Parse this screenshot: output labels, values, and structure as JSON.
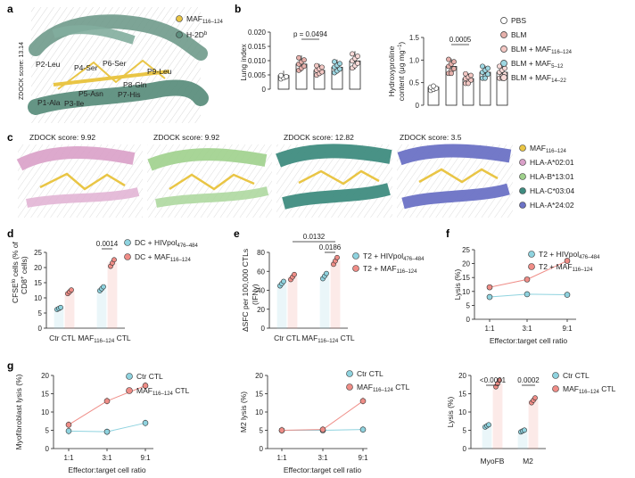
{
  "colors": {
    "maf": "#e9c545",
    "h2d": "#5d8f7e",
    "pbs": "#ffffff",
    "blm": "#e6b0ab",
    "maf116": "#f3c7c3",
    "maf5": "#9ed7e2",
    "maf14": "#f8dad8",
    "pink": "#d9a0c8",
    "green": "#9fd08c",
    "teal": "#3f8c80",
    "blue": "#6c72c5",
    "ctr": "#8fd3df",
    "mafred": "#ef8d87"
  },
  "panels": {
    "a": {
      "letter": "a",
      "zdock": "ZDOCK score: 13.14",
      "legend": [
        {
          "name": "MAF",
          "sub": "116–124"
        },
        {
          "name": "H-2D",
          "sup": "b"
        }
      ],
      "residues": [
        "P2-Leu",
        "P4-Ser",
        "P6-Ser",
        "P9-Leu",
        "P8-Gln",
        "P5-Asn",
        "P7-His",
        "P1-Ala",
        "P3-Ile"
      ]
    },
    "b": {
      "letter": "b",
      "legend": [
        {
          "name": "PBS"
        },
        {
          "name": "BLM"
        },
        {
          "name": "BLM + MAF",
          "sub": "116–124"
        },
        {
          "name": "BLM + MAF",
          "sub": "5–12"
        },
        {
          "name": "BLM + MAF",
          "sub": "14–22"
        }
      ],
      "lung": {
        "ylabel": "Lung index",
        "ticks": [
          "0",
          "0.005",
          "0.010",
          "0.015",
          "0.020"
        ],
        "pval": "p = 0.0494",
        "chart_data": {
          "type": "bar",
          "categories": [
            "PBS",
            "BLM",
            "BLM + MAF116–124",
            "BLM + MAF5–12",
            "BLM + MAF14–22"
          ],
          "values": [
            0.0048,
            0.0088,
            0.0066,
            0.0077,
            0.0099
          ],
          "ylim": [
            0,
            0.02
          ]
        }
      },
      "hyp": {
        "ylabel1": "Hydroxyproline",
        "ylabel2": "content (μg mg",
        "ylabel2sup": "−1",
        "ylabel2end": ")",
        "ticks": [
          "0",
          "0.5",
          "1.0",
          "1.5"
        ],
        "pval": "0.0005",
        "chart_data": {
          "type": "bar",
          "categories": [
            "PBS",
            "BLM",
            "BLM + MAF116–124",
            "BLM + MAF5–12",
            "BLM + MAF14–22"
          ],
          "values": [
            0.4,
            0.86,
            0.59,
            0.73,
            0.73
          ],
          "ylim": [
            0,
            1.5
          ]
        }
      }
    },
    "c": {
      "letter": "c",
      "scores": [
        "ZDOCK score: 9.92",
        "ZDOCK score: 9.92",
        "ZDOCK score: 12.82",
        "ZDOCK score: 3.5"
      ],
      "legend": [
        {
          "name": "MAF",
          "sub": "116–124"
        },
        {
          "name": "HLA-A*02:01"
        },
        {
          "name": "HLA-B*13:01"
        },
        {
          "name": "HLA-C*03:04"
        },
        {
          "name": "HLA-A*24:02"
        }
      ]
    },
    "d": {
      "letter": "d",
      "ylabel1": "CFSE",
      "ylabel1sup": "lo",
      "ylabel1end": " cells (% of",
      "ylabel2": "CD8",
      "ylabel2sup": "+",
      "ylabel2end": " cells)",
      "ticks": [
        "0",
        "5",
        "10",
        "15",
        "20",
        "25"
      ],
      "pval": "0.0014",
      "legend": [
        {
          "name": "DC + HIVpol",
          "sub": "476–484"
        },
        {
          "name": "DC + MAF",
          "sub": "116–124"
        }
      ],
      "xlabels": [
        {
          "name": "Ctr CTL"
        },
        {
          "name": "MAF",
          "sub": "116–124",
          "end": " CTL"
        }
      ],
      "chart_data": {
        "type": "bar",
        "categories": [
          "Ctr CTL",
          "MAF116–124 CTL"
        ],
        "series": [
          {
            "name": "DC + HIVpol476–484",
            "values": [
              6.5,
              13.0
            ]
          },
          {
            "name": "DC + MAF116–124",
            "values": [
              12.0,
              21.5
            ]
          }
        ],
        "ylim": [
          0,
          25
        ]
      }
    },
    "e": {
      "letter": "e",
      "ylabel1": "ΔSFC per 100,000 CTLs",
      "ylabel2": "(IFNγ)",
      "ticks": [
        "0",
        "20",
        "40",
        "60",
        "80"
      ],
      "pval1": "0.0132",
      "pval2": "0.0186",
      "legend": [
        {
          "name": "T2 + HIVpol",
          "sub": "476–484"
        },
        {
          "name": "T2 + MAF",
          "sub": "116–124"
        }
      ],
      "xlabels": [
        {
          "name": "Ctr CTL"
        },
        {
          "name": "MAF",
          "sub": "116–124",
          "end": " CTL"
        }
      ],
      "chart_data": {
        "type": "bar",
        "categories": [
          "Ctr CTL",
          "MAF116–124 CTL"
        ],
        "series": [
          {
            "name": "T2 + HIVpol476–484",
            "values": [
              47,
              55
            ]
          },
          {
            "name": "T2 + MAF116–124",
            "values": [
              54,
              71
            ]
          }
        ],
        "ylim": [
          0,
          80
        ]
      }
    },
    "f": {
      "letter": "f",
      "ylabel": "Lysis (%)",
      "ticks": [
        "0",
        "5",
        "10",
        "15",
        "20",
        "25"
      ],
      "xlabel": "Effector:target cell ratio",
      "xticks": [
        "1:1",
        "3:1",
        "9:1"
      ],
      "legend": [
        {
          "name": "T2 + HIVpol",
          "sub": "476–484"
        },
        {
          "name": "T2 + MAF",
          "sub": "116–124"
        }
      ],
      "chart_data": {
        "type": "line",
        "x": [
          "1:1",
          "3:1",
          "9:1"
        ],
        "series": [
          {
            "name": "T2 + HIVpol476–484",
            "values": [
              8.0,
              9.0,
              8.8
            ]
          },
          {
            "name": "T2 + MAF116–124",
            "values": [
              11.5,
              14.3,
              21.0
            ]
          }
        ],
        "ylim": [
          0,
          25
        ]
      }
    },
    "g1": {
      "letter": "g",
      "ylabel": "Myofibroblast lysis (%)",
      "ticks": [
        "0",
        "5",
        "10",
        "15",
        "20"
      ],
      "xlabel": "Effector:target cell ratio",
      "xticks": [
        "1:1",
        "3:1",
        "9:1"
      ],
      "legend": [
        {
          "name": "Ctr CTL"
        },
        {
          "name": "MAF",
          "sub": "116–124",
          "end": " CTL"
        }
      ],
      "chart_data": {
        "type": "line",
        "x": [
          "1:1",
          "3:1",
          "9:1"
        ],
        "series": [
          {
            "name": "Ctr CTL",
            "values": [
              4.8,
              4.6,
              7.0
            ]
          },
          {
            "name": "MAF116–124 CTL",
            "values": [
              6.5,
              13.0,
              17.2
            ]
          }
        ],
        "ylim": [
          0,
          20
        ]
      }
    },
    "g2": {
      "ylabel": "M2 lysis (%)",
      "ticks": [
        "0",
        "5",
        "10",
        "15",
        "20"
      ],
      "xlabel": "Effector:target cell ratio",
      "xticks": [
        "1:1",
        "3:1",
        "9:1"
      ],
      "legend": [
        {
          "name": "Ctr CTL"
        },
        {
          "name": "MAF",
          "sub": "116–124",
          "end": " CTL"
        }
      ],
      "chart_data": {
        "type": "line",
        "x": [
          "1:1",
          "3:1",
          "9:1"
        ],
        "series": [
          {
            "name": "Ctr CTL",
            "values": [
              5.0,
              5.0,
              5.2
            ]
          },
          {
            "name": "MAF116–124 CTL",
            "values": [
              5.0,
              5.2,
              13.0
            ]
          }
        ],
        "ylim": [
          0,
          20
        ]
      }
    },
    "g3": {
      "ylabel": "Lysis (%)",
      "ticks": [
        "0",
        "5",
        "10",
        "15",
        "20"
      ],
      "pval1": "<0.0001",
      "pval2": "0.0002",
      "legend": [
        {
          "name": "Ctr CTL"
        },
        {
          "name": "MAF",
          "sub": "116–124",
          "end": " CTL"
        }
      ],
      "chart_data": {
        "type": "bar",
        "categories": [
          "MyoFB",
          "M2"
        ],
        "series": [
          {
            "name": "Ctr CTL",
            "values": [
              6.2,
              4.8
            ]
          },
          {
            "name": "MAF116–124 CTL",
            "values": [
              17.8,
              13.2
            ]
          }
        ],
        "ylim": [
          0,
          20
        ]
      }
    }
  }
}
